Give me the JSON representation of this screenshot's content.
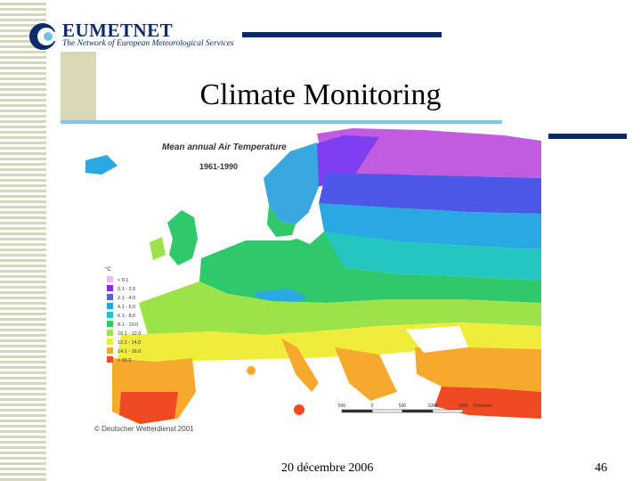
{
  "header": {
    "org_name": "EUMETNET",
    "org_tagline": "The Network of European Meteorological Services",
    "title": "Climate Monitoring"
  },
  "map": {
    "title": "Mean annual Air Temperature",
    "period": "1961-1990",
    "legend_unit": "°C",
    "legend": [
      {
        "label": "< 0.1",
        "color": "#f4b6f1"
      },
      {
        "label": "0.1 - 2.0",
        "color": "#8a2be2"
      },
      {
        "label": "2.1 - 4.0",
        "color": "#5d5ce6"
      },
      {
        "label": "4.1 - 6.0",
        "color": "#27a4e3"
      },
      {
        "label": "6.1 - 8.0",
        "color": "#22c4c4"
      },
      {
        "label": "8.1 - 10.0",
        "color": "#2fc86a"
      },
      {
        "label": "10.1 - 12.0",
        "color": "#9ee24a"
      },
      {
        "label": "12.1 - 14.0",
        "color": "#f0ec3c"
      },
      {
        "label": "14.1 - 16.0",
        "color": "#f6a92c"
      },
      {
        "label": "> 16.0",
        "color": "#f04a24"
      }
    ],
    "scale_labels": [
      "500",
      "0",
      "500",
      "1000",
      "1500",
      "Kilometer"
    ],
    "credit": "© Deutscher Wetterdienst 2001"
  },
  "footer": {
    "date": "20 décembre 2006",
    "page": "46"
  }
}
